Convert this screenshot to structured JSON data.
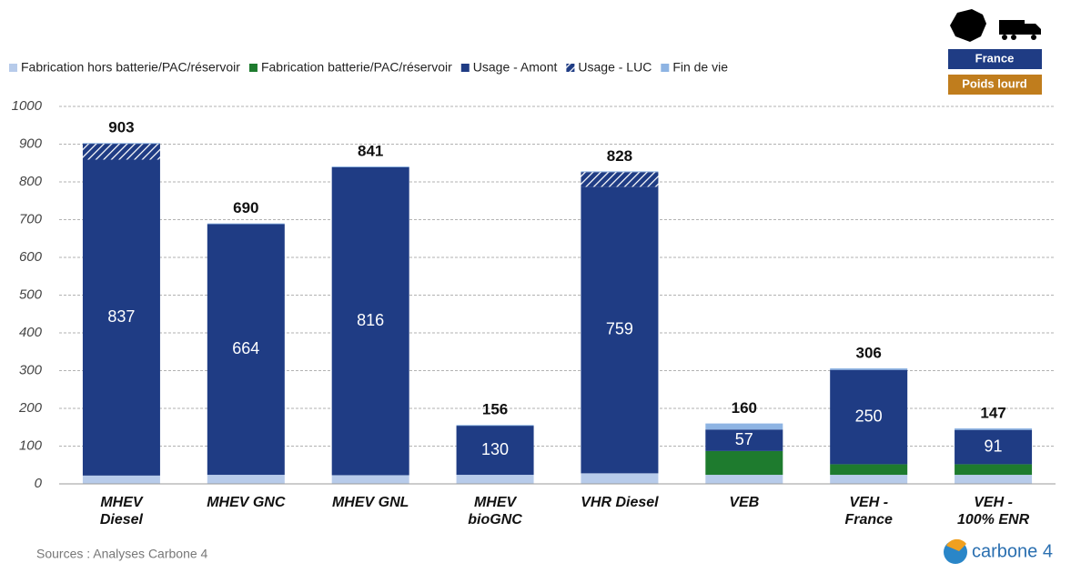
{
  "chart_data": {
    "type": "stacked_bar",
    "categories": [
      "MHEV Diesel",
      "MHEV GNC",
      "MHEV GNL",
      "MHEV bioGNC",
      "VHR Diesel",
      "VEB",
      "VEH - France",
      "VEH - 100% ENR"
    ],
    "series": [
      {
        "name": "Fabrication hors batterie/PAC/réservoir",
        "color": "#b7cbea",
        "values": [
          22,
          24,
          23,
          24,
          28,
          24,
          24,
          24
        ]
      },
      {
        "name": "Fabrication batterie/PAC/réservoir",
        "color": "#1e7b2e",
        "values": [
          0,
          0,
          0,
          0,
          0,
          63,
          28,
          28
        ]
      },
      {
        "name": "Usage - Amont",
        "color": "#1f3c84",
        "values": [
          837,
          664,
          816,
          130,
          759,
          57,
          250,
          91
        ],
        "show_labels": true
      },
      {
        "name": "Usage - LUC",
        "color": "#1f3c84",
        "hatch": true,
        "values": [
          42,
          0,
          0,
          0,
          39,
          0,
          0,
          0
        ]
      },
      {
        "name": "Fin de vie",
        "color": "#8eb4e3",
        "values": [
          2,
          2,
          2,
          2,
          2,
          16,
          4,
          4
        ]
      }
    ],
    "totals": [
      903,
      690,
      841,
      156,
      828,
      160,
      306,
      147
    ],
    "ylim": [
      0,
      1000
    ],
    "yticks": [
      0,
      100,
      200,
      300,
      400,
      500,
      600,
      700,
      800,
      900,
      1000
    ],
    "grid": true
  },
  "badge": {
    "country": "France",
    "vehicle": "Poids lourd"
  },
  "source": "Sources : Analyses Carbone 4",
  "logo": "carbone 4"
}
